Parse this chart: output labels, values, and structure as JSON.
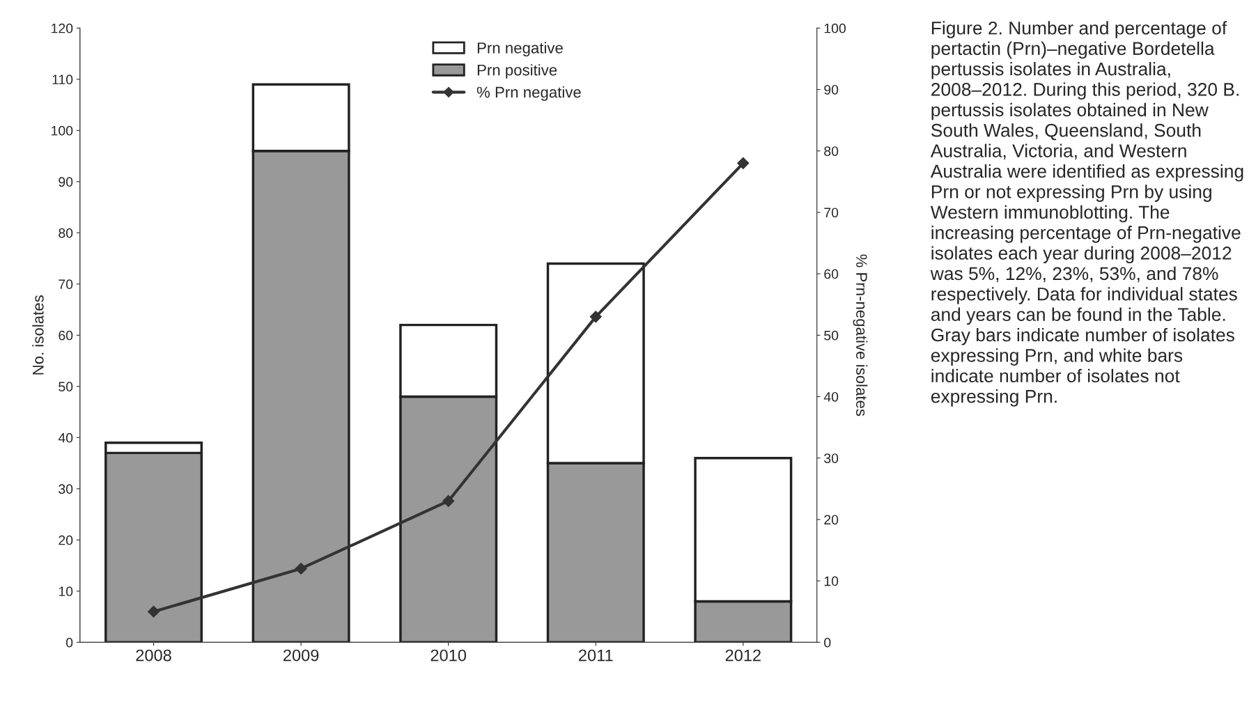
{
  "chart_data": {
    "type": "bar",
    "stacked": true,
    "ylabel": "No. isolates",
    "y2label": "% Prn-negative isolates",
    "categories": [
      "2008",
      "2009",
      "2010",
      "2011",
      "2012"
    ],
    "series": [
      {
        "name": "Prn positive",
        "color": "#999999",
        "values": [
          37,
          96,
          48,
          35,
          8
        ]
      },
      {
        "name": "Prn negative",
        "color": "#ffffff",
        "values": [
          2,
          13,
          14,
          39,
          28
        ]
      },
      {
        "name": "% Prn negative",
        "type": "line",
        "axis": "y2",
        "color": "#333333",
        "marker": "diamond",
        "line_style": "solid",
        "values": [
          5,
          12,
          23,
          53,
          78
        ]
      }
    ],
    "ylim": [
      0,
      120
    ],
    "yticks": [
      0,
      10,
      20,
      30,
      40,
      50,
      60,
      70,
      80,
      90,
      100,
      110,
      120
    ],
    "y2lim": [
      0,
      100
    ],
    "y2ticks": [
      0,
      10,
      20,
      30,
      40,
      50,
      60,
      70,
      80,
      90,
      100
    ],
    "grid": false,
    "legend": "top",
    "annotations": [
      "Figure 2. Number and percentage of pertactin (Prn)–negative Bordetella pertussis isolates in Australia, 2008–2012. During this period, 320 B. pertussis isolates obtained in New South Wales, Queensland, South Australia, Victoria, and Western Australia were identified as expressing Prn or not expressing Prn by using Western immunoblotting. The increasing percentage of Prn-negative isolates each year during 2008–2012 was 5%, 12%, 23%, 53%, and 78% respectively. Data for individual states and years can be found in the Table. Gray bars indicate number of isolates expressing Prn, and white bars indicate number of isolates not expressing Prn."
    ]
  }
}
